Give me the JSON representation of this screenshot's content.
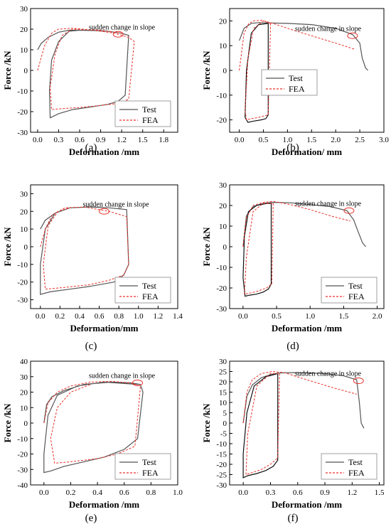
{
  "chart_data": [
    {
      "type": "line",
      "panel_label": "(a)",
      "xlabel": "Deformation /mm",
      "ylabel": "Force /kN",
      "xlim": [
        -0.1,
        2.0
      ],
      "ylim": [
        -30,
        30
      ],
      "xticks": [
        "0.0",
        "0.3",
        "0.6",
        "0.9",
        "1.2",
        "1.5",
        "1.8"
      ],
      "yticks": [
        "-30",
        "-20",
        "-10",
        "0",
        "10",
        "20",
        "30"
      ],
      "legend": {
        "position": "bottom-right",
        "entries": [
          "Test",
          "FEA"
        ]
      },
      "annotation": {
        "text": "sudden change in slope",
        "at": [
          1.15,
          17.5
        ]
      },
      "series": [
        {
          "name": "Test",
          "color": "#555555",
          "style": "solid",
          "x": [
            0.0,
            0.05,
            0.15,
            0.3,
            0.45,
            0.7,
            1.0,
            1.2,
            1.3,
            1.25,
            1.15,
            1.0,
            0.8,
            0.5,
            0.3,
            0.18,
            0.17,
            0.2,
            0.3,
            0.45,
            0.6,
            0.9
          ],
          "y": [
            10,
            13,
            16,
            18.5,
            19.5,
            19.5,
            19,
            18,
            17,
            -12,
            -15,
            -16.5,
            -17.5,
            -19,
            -21,
            -23,
            -10,
            5,
            14,
            19,
            19.5,
            19.2
          ]
        },
        {
          "name": "FEA",
          "color": "#e8312a",
          "style": "dashed",
          "x": [
            0.0,
            0.1,
            0.2,
            0.3,
            0.5,
            0.8,
            1.1,
            1.3,
            1.38,
            1.3,
            1.15,
            0.9,
            0.6,
            0.35,
            0.2,
            0.18,
            0.25,
            0.35,
            0.5,
            0.9,
            1.2
          ],
          "y": [
            0,
            12,
            18,
            20,
            20.5,
            19.5,
            18,
            16,
            14,
            -14,
            -16,
            -17,
            -18,
            -18.5,
            -19,
            -8,
            8,
            17,
            20,
            19.5,
            18
          ]
        }
      ]
    },
    {
      "type": "line",
      "panel_label": "(b)",
      "xlabel": "Deformation/ mm",
      "ylabel": "Force /kN",
      "xlim": [
        -0.2,
        3.0
      ],
      "ylim": [
        -25,
        25
      ],
      "xticks": [
        "0.0",
        "0.5",
        "1.0",
        "1.5",
        "2.0",
        "2.5",
        "3.0"
      ],
      "yticks": [
        "-20",
        "-10",
        "0",
        "10",
        "20"
      ],
      "legend": {
        "position": "bottom-left",
        "entries": [
          "Test",
          "FEA"
        ]
      },
      "annotation": {
        "text": "sudden change in slope",
        "at": [
          2.35,
          14
        ]
      },
      "series": [
        {
          "name": "Test",
          "color": "#555555",
          "style": "solid",
          "x": [
            0.0,
            0.1,
            0.25,
            0.4,
            0.6,
            1.0,
            1.5,
            2.0,
            2.35,
            2.5,
            2.55,
            2.62,
            2.67
          ],
          "y": [
            12,
            17,
            19,
            19.3,
            19.2,
            19,
            18.5,
            17,
            14.5,
            11,
            5,
            1,
            0
          ]
        },
        {
          "name": "Test",
          "color": "#111111",
          "style": "solid",
          "x": [
            0.6,
            0.6,
            0.55,
            0.45,
            0.3,
            0.18,
            0.12,
            0.15,
            0.25,
            0.4,
            0.6
          ],
          "y": [
            19,
            -18,
            -19.5,
            -20,
            -20.5,
            -21,
            -19,
            0,
            15,
            18.5,
            19
          ]
        },
        {
          "name": "FEA",
          "color": "#e8312a",
          "style": "dashed",
          "x": [
            0.0,
            0.1,
            0.2,
            0.3,
            0.45,
            0.7,
            1.0,
            1.5,
            2.0,
            2.4
          ],
          "y": [
            0,
            15,
            19,
            20,
            20.3,
            19,
            17,
            14,
            11,
            8.5
          ]
        },
        {
          "name": "FEA",
          "color": "#e8312a",
          "style": "dashed",
          "x": [
            0.65,
            0.6,
            0.4,
            0.25,
            0.15,
            0.12,
            0.18,
            0.3,
            0.5,
            0.65
          ],
          "y": [
            19,
            -18,
            -19,
            -19.5,
            -20,
            -16,
            5,
            17,
            20,
            19
          ]
        }
      ]
    },
    {
      "type": "line",
      "panel_label": "(c)",
      "xlabel": "Deformation/mm",
      "ylabel": "Force /kN",
      "xlim": [
        -0.1,
        1.4
      ],
      "ylim": [
        -35,
        35
      ],
      "xticks": [
        "0.0",
        "0.2",
        "0.4",
        "0.6",
        "0.8",
        "1.0",
        "1.2",
        "1.4"
      ],
      "yticks": [
        "-30",
        "-20",
        "-10",
        "0",
        "10",
        "20",
        "30"
      ],
      "legend": {
        "position": "bottom-right",
        "entries": [
          "Test",
          "FEA"
        ]
      },
      "annotation": {
        "text": "sudden change in slope",
        "at": [
          0.65,
          20
        ]
      },
      "series": [
        {
          "name": "Test",
          "color": "#555555",
          "style": "solid",
          "x": [
            0.0,
            0.05,
            0.15,
            0.3,
            0.5,
            0.7,
            0.88,
            0.9,
            0.85,
            0.75,
            0.5,
            0.3,
            0.1,
            0.0,
            0.0,
            0.05,
            0.15,
            0.3
          ],
          "y": [
            10,
            15,
            19,
            22,
            22.5,
            22,
            21,
            -10,
            -16,
            -20,
            -22.5,
            -24,
            -25.5,
            -27,
            -10,
            10,
            19,
            22
          ]
        },
        {
          "name": "FEA",
          "color": "#e8312a",
          "style": "dashed",
          "x": [
            0.0,
            0.05,
            0.12,
            0.25,
            0.45,
            0.7,
            0.88,
            0.9,
            0.85,
            0.7,
            0.5,
            0.25,
            0.05,
            0.03,
            0.08,
            0.18,
            0.3
          ],
          "y": [
            0,
            10,
            18,
            22,
            22.5,
            20,
            17,
            -10,
            -16,
            -19,
            -21.5,
            -23,
            -24,
            -10,
            12,
            20,
            22
          ]
        }
      ]
    },
    {
      "type": "line",
      "panel_label": "(d)",
      "xlabel": "Deformation /mm",
      "ylabel": "Force /kN",
      "xlim": [
        -0.2,
        2.1
      ],
      "ylim": [
        -30,
        30
      ],
      "xticks": [
        "0.0",
        "0.5",
        "1.0",
        "1.5",
        "2.0"
      ],
      "yticks": [
        "-30",
        "-20",
        "-10",
        "0",
        "10",
        "20",
        "30"
      ],
      "legend": {
        "position": "bottom-right",
        "entries": [
          "Test",
          "FEA"
        ]
      },
      "annotation": {
        "text": "sudden change in slope",
        "at": [
          1.58,
          17.5
        ]
      },
      "series": [
        {
          "name": "Test",
          "color": "#555555",
          "style": "solid",
          "x": [
            0.0,
            0.05,
            0.15,
            0.3,
            0.45,
            0.7,
            1.0,
            1.3,
            1.55,
            1.65,
            1.72,
            1.78,
            1.83
          ],
          "y": [
            0,
            15,
            19.5,
            21,
            21.5,
            21.3,
            20.5,
            19.5,
            17.5,
            13,
            7,
            2,
            0
          ]
        },
        {
          "name": "Test",
          "color": "#111111",
          "style": "solid",
          "x": [
            0.42,
            0.42,
            0.38,
            0.3,
            0.2,
            0.1,
            0.03,
            0.0,
            0.02,
            0.08,
            0.2,
            0.35,
            0.42
          ],
          "y": [
            21,
            -18,
            -20.5,
            -22,
            -23,
            -23.5,
            -24,
            -15,
            5,
            17,
            20,
            21,
            21
          ]
        },
        {
          "name": "FEA",
          "color": "#e8312a",
          "style": "dashed",
          "x": [
            0.0,
            0.05,
            0.15,
            0.3,
            0.45,
            0.7,
            1.0,
            1.3,
            1.6
          ],
          "y": [
            0,
            14,
            20,
            21.5,
            22,
            20.5,
            18,
            15,
            12.5
          ]
        },
        {
          "name": "FEA",
          "color": "#e8312a",
          "style": "dashed",
          "x": [
            0.45,
            0.43,
            0.35,
            0.22,
            0.1,
            0.02,
            0.05,
            0.15,
            0.3,
            0.45
          ],
          "y": [
            21,
            -18,
            -20,
            -21.5,
            -22.5,
            -23,
            -5,
            17,
            21,
            21
          ]
        }
      ]
    },
    {
      "type": "line",
      "panel_label": "(e)",
      "xlabel": "Deformation /mm",
      "ylabel": "Force /kN",
      "xlim": [
        -0.1,
        1.0
      ],
      "ylim": [
        -40,
        40
      ],
      "xticks": [
        "0.0",
        "0.2",
        "0.4",
        "0.6",
        "0.8",
        "1.0"
      ],
      "yticks": [
        "-40",
        "-30",
        "-20",
        "-10",
        "0",
        "10",
        "20",
        "30",
        "40"
      ],
      "legend": {
        "position": "bottom-right",
        "entries": [
          "Test",
          "FEA"
        ]
      },
      "annotation": {
        "text": "sudden change in slope",
        "at": [
          0.7,
          26
        ]
      },
      "series": [
        {
          "name": "Test",
          "color": "#555555",
          "style": "solid",
          "x": [
            0.0,
            0.02,
            0.06,
            0.15,
            0.3,
            0.5,
            0.65,
            0.72,
            0.74,
            0.7,
            0.6,
            0.45,
            0.3,
            0.15,
            0.05,
            0.0,
            0.0,
            0.03,
            0.1,
            0.25,
            0.45,
            0.7
          ],
          "y": [
            0,
            12,
            17,
            21,
            25,
            26.5,
            26,
            25,
            20,
            -10,
            -17,
            -22,
            -25,
            -28,
            -31,
            -32,
            -20,
            5,
            18,
            24,
            26.5,
            25
          ]
        },
        {
          "name": "FEA",
          "color": "#e8312a",
          "style": "dashed",
          "x": [
            0.0,
            0.03,
            0.1,
            0.2,
            0.35,
            0.5,
            0.65,
            0.72,
            0.72,
            0.68,
            0.55,
            0.4,
            0.2,
            0.08,
            0.05,
            0.1,
            0.2,
            0.35
          ],
          "y": [
            0,
            13,
            20,
            24,
            26.5,
            27,
            26,
            24,
            22,
            -15,
            -20,
            -23,
            -25,
            -26,
            -10,
            10,
            20,
            25
          ]
        }
      ]
    },
    {
      "type": "line",
      "panel_label": "(f)",
      "xlabel": "Deformation /mm",
      "ylabel": "Force /kN",
      "xlim": [
        -0.15,
        1.55
      ],
      "ylim": [
        -30,
        30
      ],
      "xticks": [
        "0.0",
        "0.3",
        "0.6",
        "0.9",
        "1.2",
        "1.5"
      ],
      "yticks": [
        "-30",
        "-25",
        "-20",
        "-15",
        "-10",
        "-5",
        "0",
        "5",
        "10",
        "15",
        "20",
        "25",
        "30"
      ],
      "legend": {
        "position": "bottom-right",
        "entries": [
          "Test",
          "FEA"
        ]
      },
      "annotation": {
        "text": "sudden change in slope",
        "at": [
          1.27,
          20.5
        ]
      },
      "series": [
        {
          "name": "Test",
          "color": "#555555",
          "style": "solid",
          "x": [
            0.0,
            0.04,
            0.1,
            0.2,
            0.3,
            0.4,
            0.6,
            0.9,
            1.1,
            1.25,
            1.28,
            1.3,
            1.33
          ],
          "y": [
            0,
            13,
            18.5,
            22,
            23.5,
            24.3,
            24.5,
            24,
            23,
            21,
            10,
            0,
            -2.5
          ]
        },
        {
          "name": "Test",
          "color": "#111111",
          "style": "solid",
          "x": [
            0.38,
            0.38,
            0.33,
            0.25,
            0.15,
            0.05,
            0.0,
            0.0,
            0.04,
            0.12,
            0.25,
            0.38
          ],
          "y": [
            24,
            -18,
            -21,
            -23,
            -24.5,
            -25.5,
            -26.5,
            -15,
            5,
            18,
            22.5,
            24
          ]
        },
        {
          "name": "FEA",
          "color": "#e8312a",
          "style": "dashed",
          "x": [
            0.0,
            0.04,
            0.1,
            0.2,
            0.32,
            0.45,
            0.7,
            1.0,
            1.25
          ],
          "y": [
            0,
            15,
            21,
            24,
            25,
            24.5,
            21,
            17,
            14
          ]
        },
        {
          "name": "FEA",
          "color": "#e8312a",
          "style": "dashed",
          "x": [
            0.4,
            0.38,
            0.3,
            0.2,
            0.1,
            0.03,
            0.05,
            0.15,
            0.3,
            0.4
          ],
          "y": [
            24,
            -17,
            -20,
            -22.5,
            -24,
            -25,
            -5,
            18,
            24,
            24
          ]
        }
      ]
    }
  ]
}
